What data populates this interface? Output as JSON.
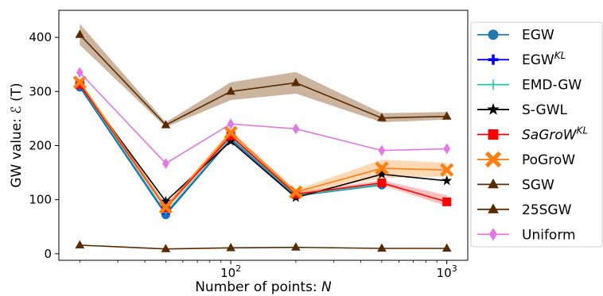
{
  "chart_data": {
    "type": "line",
    "xscale": "log",
    "x": [
      20,
      50,
      100,
      200,
      500,
      1000
    ],
    "xlim": [
      16,
      1250
    ],
    "ylim": [
      -12,
      450
    ],
    "xlabel": "Number of points: N",
    "ylabel": "GW value: ℰ (T)",
    "x_ticks": [
      {
        "value": 100,
        "base": "10",
        "exp": "2"
      },
      {
        "value": 1000,
        "base": "10",
        "exp": "3"
      }
    ],
    "y_ticks": [
      0,
      100,
      200,
      300,
      400
    ],
    "grid": false,
    "legend_position": "center right, outside plot",
    "series": [
      {
        "name": "EGW",
        "name_sup": "",
        "italic": false,
        "color": "#1f77b4",
        "marker": "circle",
        "values": [
          308,
          72,
          212,
          107,
          127,
          null
        ],
        "band": null
      },
      {
        "name": "EGW",
        "name_sup": "KL",
        "italic": false,
        "color": "#0000ff",
        "marker": "plus",
        "values": [
          310,
          75,
          213,
          108,
          128,
          null
        ],
        "band": null
      },
      {
        "name": "EMD-GW",
        "name_sup": "",
        "italic": false,
        "color": "#1ec5a0",
        "marker": "thin-plus",
        "values": [
          311,
          76,
          214,
          108,
          128,
          null
        ],
        "band": null
      },
      {
        "name": "S-GWL",
        "name_sup": "",
        "italic": false,
        "color": "#000000",
        "marker": "star",
        "values": [
          312,
          97,
          208,
          104,
          147,
          135
        ],
        "band": null
      },
      {
        "name": "SaGroW",
        "name_sup": "KL",
        "italic": true,
        "color": "#ff0000",
        "marker": "square",
        "values": [
          313,
          85,
          218,
          110,
          131,
          96
        ],
        "band": {
          "lower": [
            310,
            80,
            213,
            106,
            127,
            88
          ],
          "upper": [
            316,
            90,
            223,
            114,
            136,
            108
          ],
          "color": "#ff0000",
          "opacity": 0.25
        }
      },
      {
        "name": "PoGroW",
        "name_sup": "",
        "italic": false,
        "color": "#ff7f0e",
        "marker": "x",
        "values": [
          317,
          86,
          224,
          114,
          158,
          155
        ],
        "band": {
          "lower": [
            313,
            82,
            218,
            110,
            140,
            143
          ],
          "upper": [
            321,
            91,
            229,
            118,
            174,
            168
          ],
          "color": "#ff7f0e",
          "opacity": 0.3
        }
      },
      {
        "name": "SGW",
        "name_sup": "",
        "italic": false,
        "color": "#5a2a00",
        "marker": "triangle",
        "values": [
          405,
          238,
          300,
          316,
          251,
          254
        ],
        "band": {
          "lower": [
            386,
            234,
            284,
            296,
            243,
            248
          ],
          "upper": [
            425,
            243,
            317,
            336,
            260,
            262
          ],
          "color": "#8b5a2b",
          "opacity": 0.45
        }
      },
      {
        "name": "25SGW",
        "name_sup": "",
        "italic": false,
        "color": "#5a2a00",
        "marker": "triangle",
        "values": [
          16,
          9,
          11,
          12,
          10,
          10
        ],
        "band": null
      },
      {
        "name": "Uniform",
        "name_sup": "",
        "italic": false,
        "color": "#e377e3",
        "marker": "diamond",
        "values": [
          335,
          167,
          240,
          231,
          191,
          194
        ],
        "band": null
      }
    ]
  }
}
